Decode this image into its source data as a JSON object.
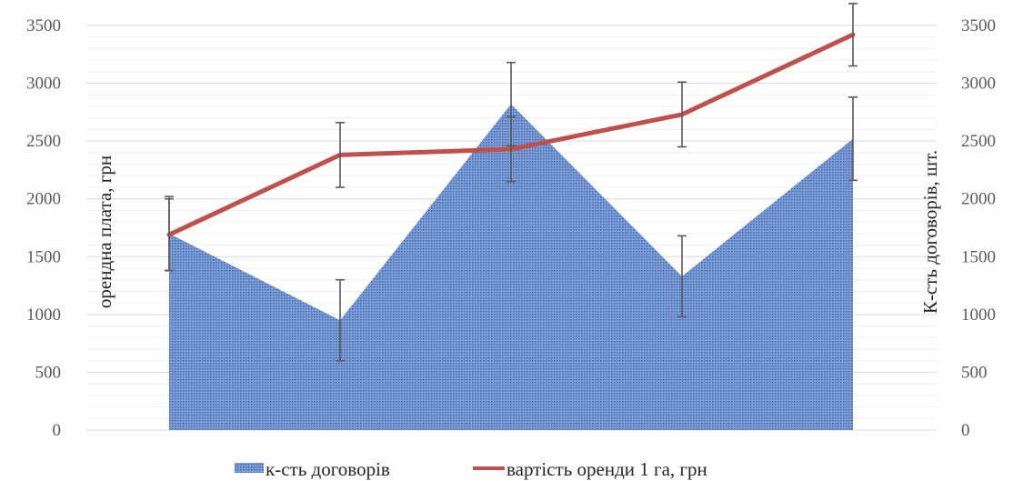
{
  "chart_data": {
    "type": "area+line",
    "x_count": 5,
    "ylim": [
      0,
      3500
    ],
    "y2lim": [
      0,
      3500
    ],
    "yticks": [
      0,
      500,
      1000,
      1500,
      2000,
      2500,
      3000,
      3500
    ],
    "y2ticks": [
      0,
      500,
      1000,
      1500,
      2000,
      2500,
      3000,
      3500
    ],
    "ylabel": "орендна плата, грн",
    "y2label": "К-сть договорів, шт.",
    "grid": true,
    "legend_position": "bottom",
    "series": [
      {
        "name": "к-сть договорів",
        "kind": "area",
        "axis": "secondary",
        "values": [
          1700,
          950,
          2820,
          1330,
          2520
        ],
        "error": [
          320,
          350,
          360,
          350,
          360
        ],
        "color": "#4a76c4"
      },
      {
        "name": "вартість оренди 1 га, грн",
        "kind": "line",
        "axis": "primary",
        "values": [
          1690,
          2380,
          2430,
          2730,
          3420
        ],
        "error": [
          310,
          280,
          280,
          280,
          270
        ],
        "color": "#c0504d"
      }
    ]
  }
}
